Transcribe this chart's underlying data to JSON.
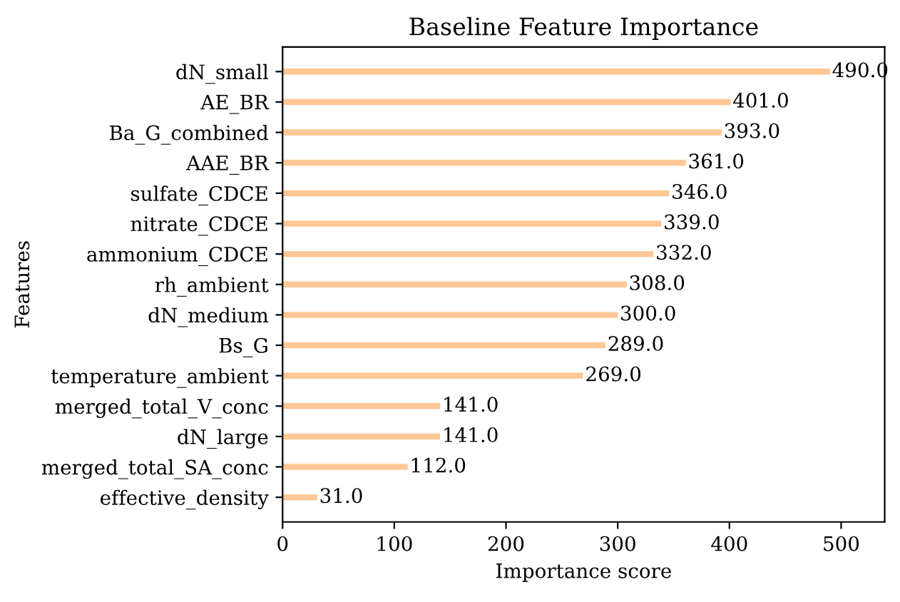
{
  "chart_data": {
    "type": "bar",
    "orientation": "horizontal",
    "title": "Baseline Feature Importance",
    "xlabel": "Importance score",
    "ylabel": "Features",
    "categories": [
      "dN_small",
      "AE_BR",
      "Ba_G_combined",
      "AAE_BR",
      "sulfate_CDCE",
      "nitrate_CDCE",
      "ammonium_CDCE",
      "rh_ambient",
      "dN_medium",
      "Bs_G",
      "temperature_ambient",
      "merged_total_V_conc",
      "dN_large",
      "merged_total_SA_conc",
      "effective_density"
    ],
    "values": [
      490,
      401,
      393,
      361,
      346,
      339,
      332,
      308,
      300,
      289,
      269,
      141,
      141,
      112,
      31
    ],
    "value_labels": [
      "490.0",
      "401.0",
      "393.0",
      "361.0",
      "346.0",
      "339.0",
      "332.0",
      "308.0",
      "300.0",
      "289.0",
      "269.0",
      "141.0",
      "141.0",
      "112.0",
      "31.0"
    ],
    "color": "#ffc896",
    "xlim": [
      0,
      539
    ],
    "xticks": [
      0,
      100,
      200,
      300,
      400,
      500
    ],
    "grid": false
  }
}
